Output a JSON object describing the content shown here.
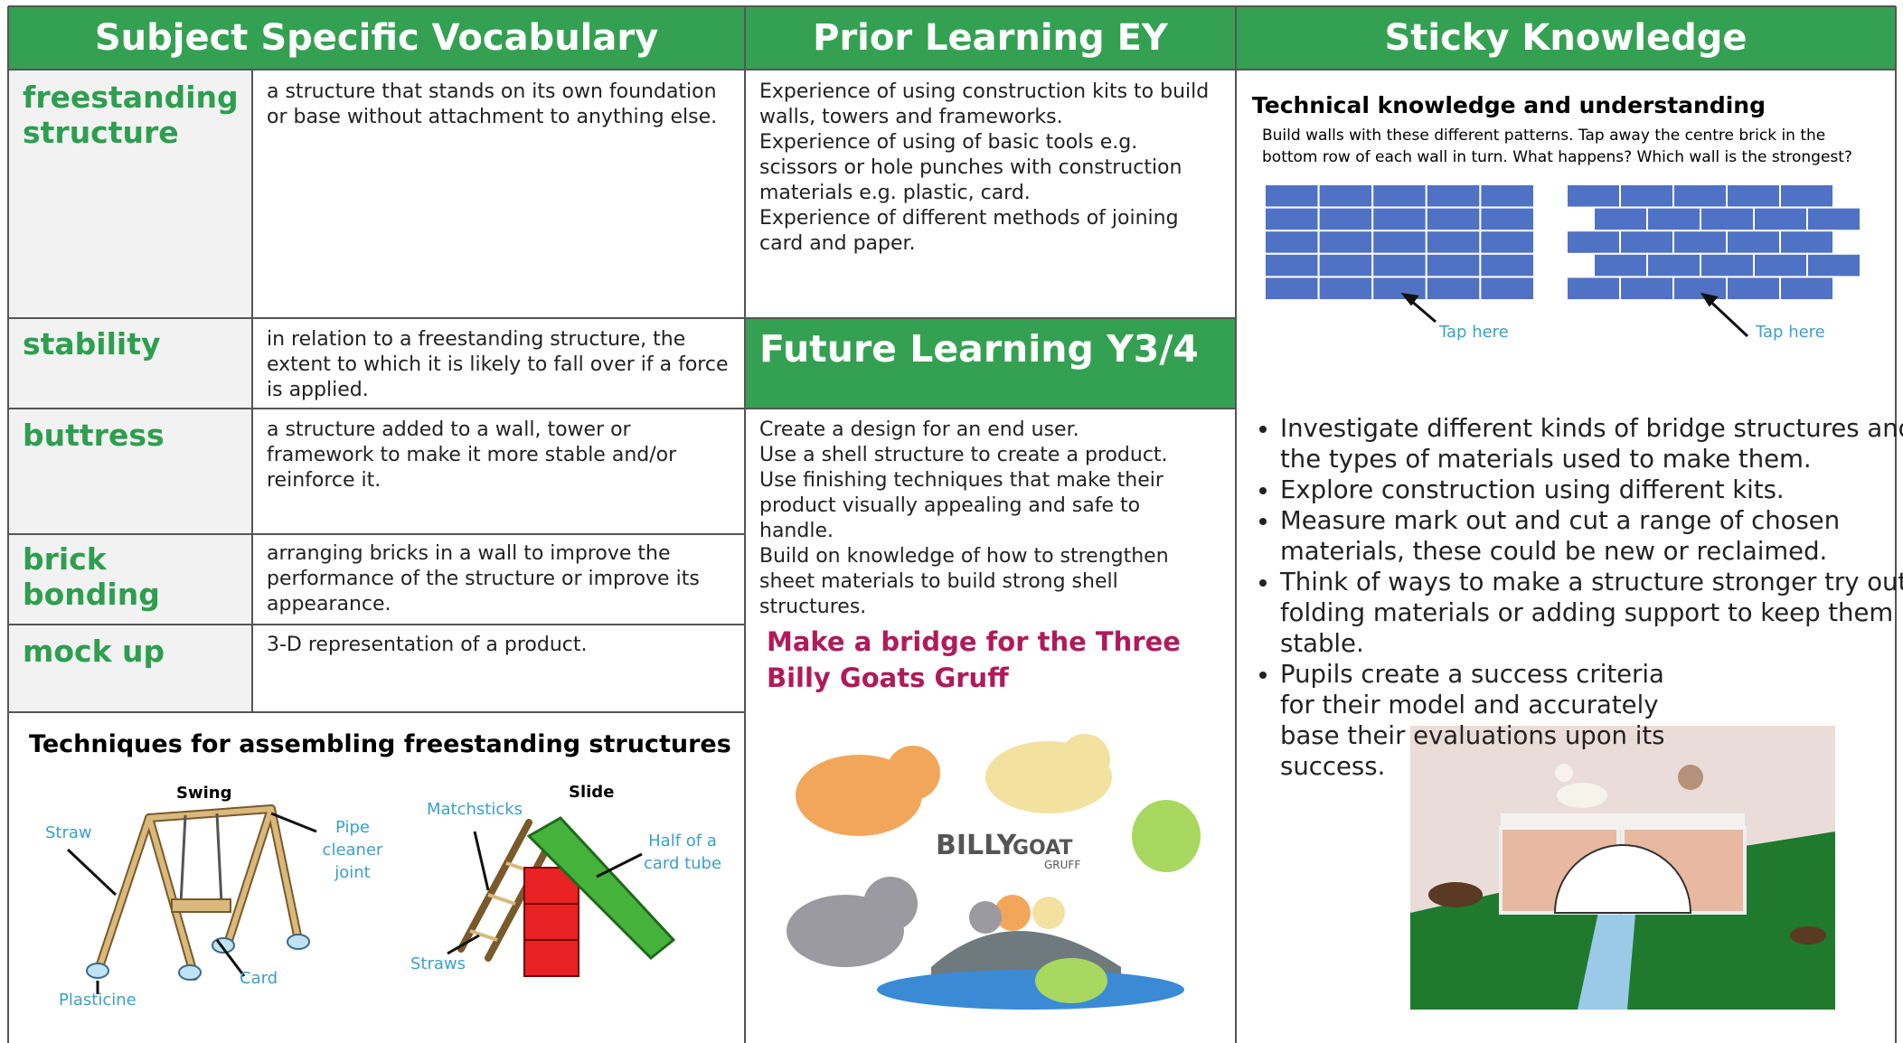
{
  "headers": [
    "Subject Specific Vocabulary",
    "Prior Learning EY",
    "Sticky Knowledge"
  ],
  "vocabulary": [
    {
      "term": "freestanding structure",
      "definition": "a structure that stands on its own foundation or base without attachment to anything else."
    },
    {
      "term": "stability",
      "definition": "in relation to a freestanding structure, the extent to which it is likely to fall over if a force is applied."
    },
    {
      "term": "buttress",
      "definition": "a structure added to a wall, tower or framework to make it more stable and/or reinforce it."
    },
    {
      "term": "brick bonding",
      "definition": "arranging bricks in a wall to improve the performance of the structure or improve its appearance."
    },
    {
      "term": "mock up",
      "definition": "3-D representation of a product."
    }
  ],
  "techniques": {
    "title": "Techniques for assembling freestanding structures",
    "swing": {
      "name": "Swing",
      "labels": [
        "Straw",
        "Pipe cleaner joint",
        "Plasticine",
        "Card"
      ]
    },
    "slide": {
      "name": "Slide",
      "labels": [
        "Matchsticks",
        "Half of a card tube",
        "Straws"
      ]
    }
  },
  "prior_learning": [
    "Experience of using construction kits to build walls, towers and frameworks.",
    "Experience of using of basic tools e.g. scissors or hole punches with construction materials e.g. plastic, card.",
    "Experience of different methods of joining card and paper."
  ],
  "future_learning": {
    "title": "Future Learning Y3/4",
    "lines": [
      "Create a design for an end user.",
      "Use a shell structure to create a product.",
      "Use finishing techniques that make their product visually appealing and safe to handle.",
      "Build on knowledge of how to strengthen sheet materials to build strong shell structures."
    ]
  },
  "bridge_task": {
    "title": "Make a bridge for the Three Billy Goats Gruff",
    "image_text": [
      "BILLY",
      "GOAT",
      "GRUFF"
    ]
  },
  "sticky_knowledge": {
    "technical": {
      "title": "Technical knowledge and understanding",
      "instructions": "Build walls with these different patterns. Tap away the centre brick in the bottom row of each wall in turn. What happens? Which wall is the strongest?",
      "tap_labels": [
        "Tap here",
        "Tap here"
      ]
    },
    "bullets": [
      "Investigate different kinds of bridge structures and the types of materials used to make them.",
      "Explore construction using different kits.",
      "Measure mark out and cut a range of chosen materials, these could be new or reclaimed.",
      "Think of ways to make a structure stronger try out folding materials or adding support to keep them stable.",
      "Pupils create a success criteria for their model and accurately base their evaluations upon its success."
    ]
  }
}
